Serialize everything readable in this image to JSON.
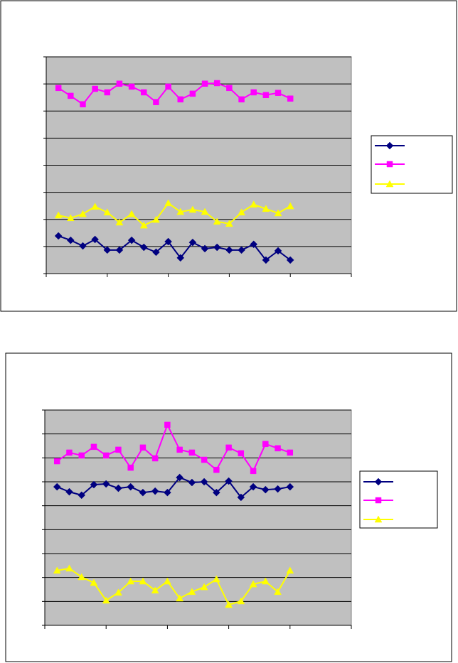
{
  "chart_data": [
    {
      "type": "line",
      "grid": true,
      "tick_labels": false,
      "plot_background": "#c0c0c0",
      "x": [
        1,
        2,
        3,
        4,
        5,
        6,
        7,
        8,
        9,
        10,
        11,
        12,
        13,
        14,
        15,
        16,
        17,
        18,
        19,
        20
      ],
      "xlim": [
        0,
        25
      ],
      "xticks": [
        0,
        5,
        10,
        15,
        20,
        25
      ],
      "ylim": [
        0,
        8
      ],
      "yticks": [
        0,
        1,
        2,
        3,
        4,
        5,
        6,
        7,
        8
      ],
      "series": [
        {
          "color": "#000080",
          "marker": "diamond",
          "values": [
            1.39,
            1.23,
            1.02,
            1.26,
            0.87,
            0.87,
            1.23,
            0.97,
            0.79,
            1.18,
            0.58,
            1.15,
            0.92,
            0.97,
            0.87,
            0.87,
            1.08,
            0.5,
            0.84,
            0.5
          ]
        },
        {
          "color": "#ff00ff",
          "marker": "square",
          "values": [
            6.85,
            6.56,
            6.25,
            6.82,
            6.69,
            7.01,
            6.9,
            6.69,
            6.33,
            6.9,
            6.43,
            6.64,
            7.01,
            7.03,
            6.85,
            6.43,
            6.69,
            6.59,
            6.67,
            6.46
          ]
        },
        {
          "color": "#ffff00",
          "marker": "triangle",
          "values": [
            2.15,
            2.05,
            2.2,
            2.47,
            2.26,
            1.89,
            2.2,
            1.78,
            1.99,
            2.6,
            2.28,
            2.36,
            2.28,
            1.92,
            1.84,
            2.26,
            2.55,
            2.39,
            2.23,
            2.49
          ]
        }
      ]
    },
    {
      "type": "line",
      "grid": true,
      "tick_labels": false,
      "plot_background": "#c0c0c0",
      "x": [
        1,
        2,
        3,
        4,
        5,
        6,
        7,
        8,
        9,
        10,
        11,
        12,
        13,
        14,
        15,
        16,
        17,
        18,
        19,
        20
      ],
      "xlim": [
        0,
        25
      ],
      "xticks": [
        0,
        5,
        10,
        15,
        20,
        25
      ],
      "ylim": [
        0,
        9
      ],
      "yticks": [
        0,
        1,
        2,
        3,
        4,
        5,
        6,
        7,
        8,
        9
      ],
      "series": [
        {
          "color": "#000080",
          "marker": "diamond",
          "values": [
            5.79,
            5.58,
            5.44,
            5.88,
            5.91,
            5.73,
            5.79,
            5.55,
            5.61,
            5.55,
            6.18,
            5.97,
            6.0,
            5.55,
            6.03,
            5.35,
            5.79,
            5.67,
            5.7,
            5.79
          ]
        },
        {
          "color": "#ff00ff",
          "marker": "square",
          "values": [
            6.86,
            7.22,
            7.1,
            7.46,
            7.1,
            7.34,
            6.59,
            7.43,
            6.98,
            8.38,
            7.34,
            7.22,
            6.92,
            6.5,
            7.43,
            7.19,
            6.45,
            7.58,
            7.4,
            7.22
          ]
        },
        {
          "color": "#ffff00",
          "marker": "triangle",
          "values": [
            2.29,
            2.38,
            2.02,
            1.78,
            1.04,
            1.37,
            1.84,
            1.84,
            1.46,
            1.84,
            1.13,
            1.4,
            1.6,
            1.93,
            0.86,
            1.01,
            1.72,
            1.84,
            1.4,
            2.29
          ]
        }
      ]
    }
  ]
}
